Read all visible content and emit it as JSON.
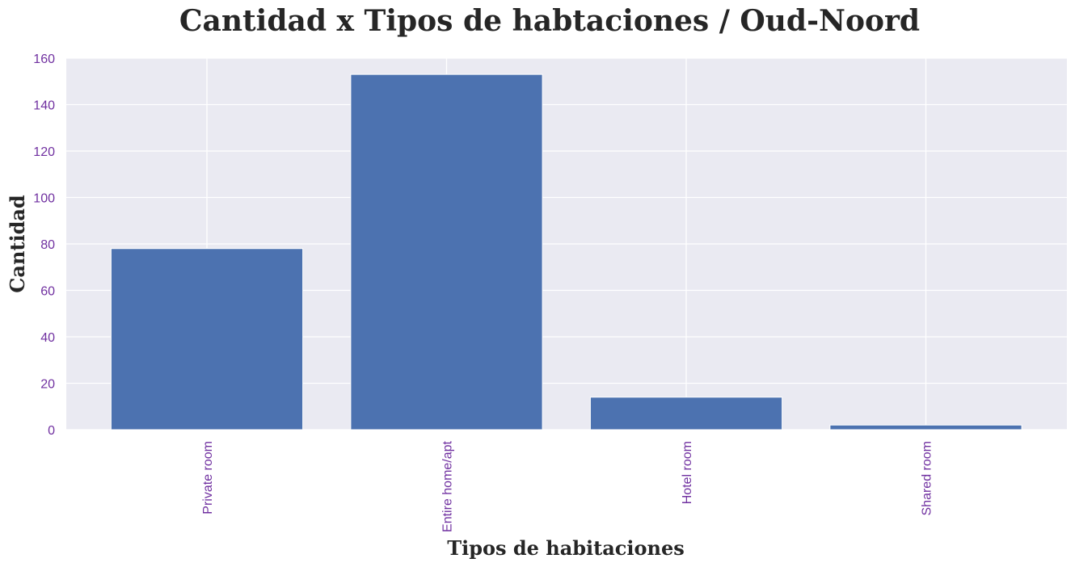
{
  "chart_data": {
    "type": "bar",
    "title": "Cantidad x Tipos de habtaciones / Oud-Noord",
    "xlabel": "Tipos de habitaciones",
    "ylabel": "Cantidad",
    "categories": [
      "Private room",
      "Entire home/apt",
      "Hotel room",
      "Shared room"
    ],
    "values": [
      78,
      153,
      14,
      2
    ],
    "ylim": [
      0,
      160
    ],
    "yticks": [
      "0",
      "20",
      "40",
      "60",
      "80",
      "100",
      "120",
      "140",
      "160"
    ],
    "grid": true,
    "legend": "none",
    "colors": {
      "bar": "#4c72b0",
      "plot_background": "#eaeaf2",
      "grid": "#ffffff",
      "tick_labels": "#7030a0",
      "title": "#262626"
    }
  }
}
